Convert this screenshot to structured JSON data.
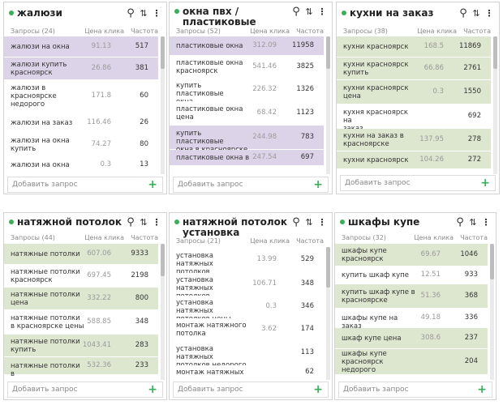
{
  "colors": {
    "dot": "#3cae5a",
    "purple_row": "#ddd3e8",
    "green_row": "#dde6cf",
    "plus": "#3cae5a"
  },
  "icons": [
    "search-icon",
    "sort-icon",
    "more-vertical-icon",
    "add-icon"
  ],
  "columns": {
    "query": "Запросы",
    "price": "Цена клика",
    "freq": "Частота"
  },
  "add_label": "Добавить запрос",
  "cards": [
    {
      "title_lines": [
        "жалюзи"
      ],
      "queries_count": "Запросы (24)",
      "rows": [
        {
          "q": [
            "жалюзи на окна"
          ],
          "p": "91.13",
          "f": "517",
          "color": "purple"
        },
        {
          "q": [
            "жалюзи купить",
            "красноярск"
          ],
          "p": "26.86",
          "f": "381",
          "color": "purple"
        },
        {
          "q": [
            "жалюзи в",
            "красноярске",
            "недорого"
          ],
          "p": "171.8",
          "f": "60",
          "color": "white"
        },
        {
          "q": [
            "жалюзи на заказ"
          ],
          "p": "116.46",
          "f": "26",
          "color": "white"
        },
        {
          "q": [
            "жалюзи на окна",
            "купить"
          ],
          "p": "74.27",
          "f": "80",
          "color": "white"
        },
        {
          "q": [
            "жалюзи на окна"
          ],
          "p": "0.3",
          "f": "13",
          "color": "white"
        }
      ]
    },
    {
      "title_lines": [
        "окна пвх /",
        "пластиковые"
      ],
      "queries_count": "Запросы (52)",
      "rows": [
        {
          "q": [
            "пластиковые окна"
          ],
          "p": "312.09",
          "f": "11958",
          "color": "purple"
        },
        {
          "q": [
            "пластиковые окна",
            "красноярск"
          ],
          "p": "541.46",
          "f": "3825",
          "color": "white"
        },
        {
          "q": [
            "купить пластиковые",
            "окна"
          ],
          "p": "226.32",
          "f": "1326",
          "color": "white"
        },
        {
          "q": [
            "пластиковые окна",
            "цена"
          ],
          "p": "68.42",
          "f": "1123",
          "color": "white"
        },
        {
          "q": [
            "купить пластиковые",
            "окна в красноярске"
          ],
          "p": "244.98",
          "f": "783",
          "color": "purple"
        },
        {
          "q": [
            "пластиковые окна в"
          ],
          "p": "247.54",
          "f": "697",
          "color": "purple"
        }
      ]
    },
    {
      "title_lines": [
        "кухни на заказ"
      ],
      "queries_count": "Запросы (38)",
      "rows": [
        {
          "q": [
            "кухни красноярск"
          ],
          "p": "168.5",
          "f": "11869",
          "color": "green"
        },
        {
          "q": [
            "кухни красноярск",
            "купить"
          ],
          "p": "66.86",
          "f": "2761",
          "color": "green"
        },
        {
          "q": [
            "кухни красноярск",
            "цена"
          ],
          "p": "0.3",
          "f": "1550",
          "color": "green"
        },
        {
          "q": [
            "кухня красноярск на",
            "заказ"
          ],
          "p": "",
          "f": "692",
          "color": "white"
        },
        {
          "q": [
            "кухни на заказ в",
            "красноярске"
          ],
          "p": "137.95",
          "f": "278",
          "color": "green"
        },
        {
          "q": [
            "кухни красноярск"
          ],
          "p": "104.26",
          "f": "272",
          "color": "green"
        }
      ]
    },
    {
      "title_lines": [
        "натяжной потолок"
      ],
      "queries_count": "Запросы (44)",
      "rows": [
        {
          "q": [
            "натяжные потолки"
          ],
          "p": "607.06",
          "f": "9333",
          "color": "green"
        },
        {
          "q": [
            "натяжные потолки",
            "красноярск"
          ],
          "p": "697.45",
          "f": "2198",
          "color": "white"
        },
        {
          "q": [
            "натяжные потолки",
            "цена"
          ],
          "p": "332.22",
          "f": "800",
          "color": "green"
        },
        {
          "q": [
            "натяжные потолки",
            "в красноярске цены"
          ],
          "p": "588.85",
          "f": "348",
          "color": "white"
        },
        {
          "q": [
            "натяжные потолки",
            "купить"
          ],
          "p": "1043.41",
          "f": "283",
          "color": "green"
        },
        {
          "q": [
            "натяжные потолки в"
          ],
          "p": "532.36",
          "f": "233",
          "color": "green"
        }
      ]
    },
    {
      "title_lines": [
        "натяжной потолок",
        "установка"
      ],
      "queries_count": "Запросы (21)",
      "rows": [
        {
          "q": [
            "установка натяжных",
            "потолков"
          ],
          "p": "13.99",
          "f": "529",
          "color": "white"
        },
        {
          "q": [
            "установка натяжных",
            "потолков красноярск"
          ],
          "p": "106.71",
          "f": "348",
          "color": "white"
        },
        {
          "q": [
            "установка натяжных",
            "потолков цены"
          ],
          "p": "0.3",
          "f": "346",
          "color": "white"
        },
        {
          "q": [
            "монтаж натяжного",
            "потолка"
          ],
          "p": "3.62",
          "f": "174",
          "color": "white"
        },
        {
          "q": [
            "установка натяжных",
            "потолков недорого"
          ],
          "p": "",
          "f": "113",
          "color": "white"
        },
        {
          "q": [
            "монтаж натяжных"
          ],
          "p": "",
          "f": "62",
          "color": "white"
        }
      ]
    },
    {
      "title_lines": [
        "шкафы купе"
      ],
      "queries_count": "Запросы (32)",
      "rows": [
        {
          "q": [
            "шкафы купе",
            "красноярск"
          ],
          "p": "69.67",
          "f": "1046",
          "color": "green"
        },
        {
          "q": [
            "купить шкаф купе"
          ],
          "p": "12.51",
          "f": "933",
          "color": "white"
        },
        {
          "q": [
            "купить шкаф купе в",
            "красноярске"
          ],
          "p": "51.36",
          "f": "368",
          "color": "green"
        },
        {
          "q": [
            "шкафы купе на заказ"
          ],
          "p": "49.18",
          "f": "336",
          "color": "white"
        },
        {
          "q": [
            "шкаф купе цена"
          ],
          "p": "308.6",
          "f": "237",
          "color": "green"
        },
        {
          "q": [
            "шкафы купе",
            "красноярск",
            "недорого"
          ],
          "p": "",
          "f": "204",
          "color": "green"
        }
      ]
    }
  ]
}
